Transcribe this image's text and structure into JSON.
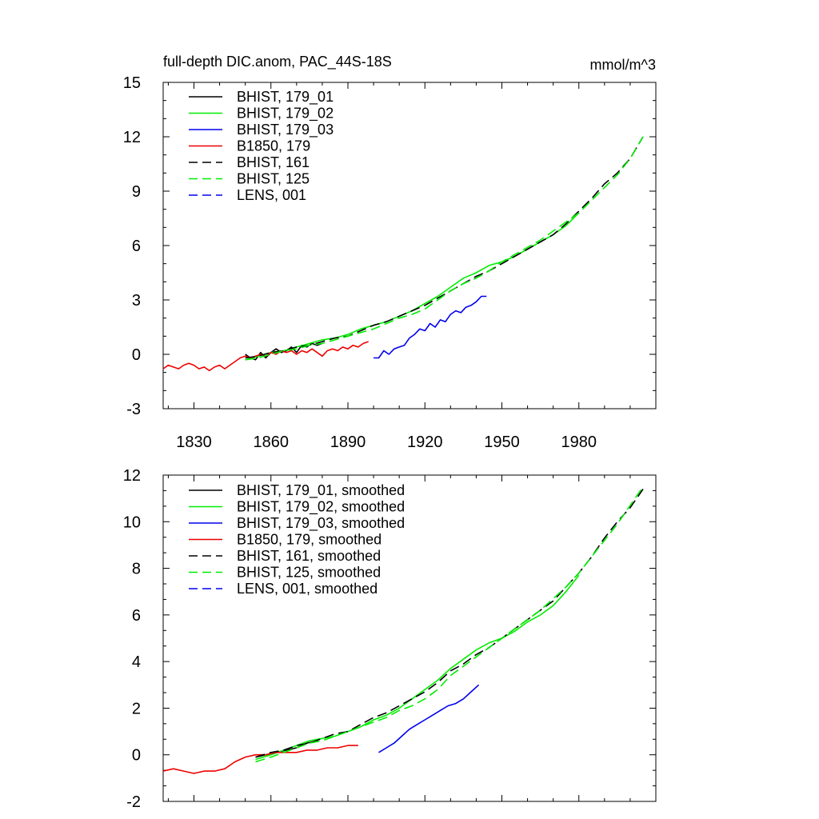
{
  "chart_data": [
    {
      "type": "line",
      "title": "full-depth DIC.anom, PAC_44S-18S",
      "units": "mmol/m^3",
      "xlim": [
        1818,
        2010
      ],
      "ylim": [
        -3,
        15
      ],
      "yticks": [
        "-3",
        "0",
        "3",
        "6",
        "9",
        "12",
        "15"
      ],
      "xticks": [
        "1830",
        "1860",
        "1890",
        "1920",
        "1950",
        "1980"
      ],
      "legend_position": "top-left",
      "series": [
        {
          "name": "BHIST, 179_01",
          "color": "#000000",
          "dash": "solid",
          "x": [
            1850,
            1852,
            1854,
            1856,
            1858,
            1860,
            1862,
            1864,
            1866,
            1868,
            1870,
            1872,
            1874,
            1876,
            1878,
            1880
          ],
          "y": [
            0.0,
            -0.2,
            -0.3,
            0.1,
            -0.2,
            0.1,
            0.3,
            0.1,
            0.2,
            0.4,
            0.1,
            0.5,
            0.4,
            0.6,
            0.5,
            0.6
          ]
        },
        {
          "name": "BHIST, 179_02",
          "color": "#00ee00",
          "dash": "solid",
          "x": [
            1850,
            1855,
            1860,
            1865,
            1870,
            1875,
            1880,
            1885,
            1890,
            1895,
            1900,
            1905,
            1910,
            1915,
            1920,
            1925,
            1930,
            1935,
            1940,
            1945,
            1950,
            1955,
            1960,
            1965,
            1970,
            1975,
            1980
          ],
          "y": [
            -0.3,
            -0.1,
            0.1,
            0.2,
            0.4,
            0.6,
            0.8,
            0.9,
            1.1,
            1.4,
            1.6,
            1.8,
            2.1,
            2.4,
            2.8,
            3.2,
            3.7,
            4.2,
            4.5,
            4.9,
            5.1,
            5.4,
            5.8,
            6.2,
            6.6,
            7.1,
            7.8
          ]
        },
        {
          "name": "BHIST, 179_03",
          "color": "#0000ee",
          "dash": "solid",
          "x": [
            1900,
            1902,
            1904,
            1906,
            1908,
            1910,
            1912,
            1914,
            1916,
            1918,
            1920,
            1922,
            1924,
            1926,
            1928,
            1930,
            1932,
            1934,
            1936,
            1938,
            1940,
            1942,
            1944
          ],
          "y": [
            -0.2,
            -0.2,
            0.2,
            0.0,
            0.3,
            0.4,
            0.5,
            0.9,
            1.1,
            1.4,
            1.3,
            1.7,
            1.5,
            1.9,
            1.8,
            2.2,
            2.4,
            2.3,
            2.6,
            2.7,
            2.9,
            3.2,
            3.2
          ]
        },
        {
          "name": "B1850, 179",
          "color": "#ee0000",
          "dash": "solid",
          "x": [
            1818,
            1820,
            1822,
            1824,
            1826,
            1828,
            1830,
            1832,
            1834,
            1836,
            1838,
            1840,
            1842,
            1844,
            1846,
            1848,
            1850,
            1852,
            1854,
            1856,
            1858,
            1860,
            1862,
            1864,
            1866,
            1868,
            1870,
            1872,
            1874,
            1876,
            1878,
            1880,
            1882,
            1884,
            1886,
            1888,
            1890,
            1892,
            1894,
            1896,
            1898
          ],
          "y": [
            -0.8,
            -0.6,
            -0.7,
            -0.8,
            -0.6,
            -0.5,
            -0.6,
            -0.8,
            -0.7,
            -0.9,
            -0.7,
            -0.6,
            -0.8,
            -0.6,
            -0.4,
            -0.2,
            -0.1,
            -0.2,
            -0.1,
            0.0,
            -0.1,
            0.1,
            0.0,
            0.2,
            0.1,
            0.2,
            0.0,
            0.2,
            0.1,
            0.3,
            0.1,
            -0.1,
            0.2,
            0.3,
            0.2,
            0.4,
            0.3,
            0.5,
            0.4,
            0.6,
            0.7
          ]
        },
        {
          "name": "BHIST, 161",
          "color": "#000000",
          "dash": "dashed",
          "x": [
            1850,
            1855,
            1860,
            1865,
            1870,
            1875,
            1880,
            1885,
            1890,
            1895,
            1900,
            1905,
            1910,
            1915,
            1920,
            1925,
            1930,
            1935,
            1940,
            1945,
            1950,
            1955,
            1960,
            1965,
            1970,
            1975,
            1980,
            1985,
            1990,
            1995,
            2000,
            2005
          ],
          "y": [
            -0.2,
            -0.1,
            0.1,
            0.2,
            0.4,
            0.5,
            0.7,
            0.9,
            1.0,
            1.3,
            1.6,
            1.8,
            2.1,
            2.4,
            2.7,
            3.1,
            3.5,
            3.9,
            4.3,
            4.6,
            5.0,
            5.4,
            5.8,
            6.2,
            6.6,
            7.2,
            7.9,
            8.6,
            9.4,
            10.0,
            10.8,
            12.0
          ]
        },
        {
          "name": "BHIST, 125",
          "color": "#00ee00",
          "dash": "dashed",
          "x": [
            1850,
            1855,
            1860,
            1865,
            1870,
            1875,
            1880,
            1885,
            1890,
            1895,
            1900,
            1905,
            1910,
            1915,
            1920,
            1925,
            1930,
            1935,
            1940,
            1945,
            1950,
            1955,
            1960,
            1965,
            1970,
            1975,
            1980,
            1985,
            1990,
            1995,
            2000,
            2005
          ],
          "y": [
            -0.3,
            -0.2,
            0.0,
            0.2,
            0.3,
            0.5,
            0.6,
            0.8,
            1.0,
            1.2,
            1.4,
            1.7,
            2.0,
            2.2,
            2.5,
            3.0,
            3.5,
            3.9,
            4.2,
            4.6,
            5.1,
            5.5,
            5.9,
            6.3,
            6.8,
            7.3,
            7.8,
            8.5,
            9.2,
            9.9,
            10.8,
            12.0
          ]
        },
        {
          "name": "LENS, 001",
          "color": "#0000ee",
          "dash": "dashed",
          "x": [],
          "y": []
        }
      ]
    },
    {
      "type": "line",
      "title": "",
      "xlim": [
        1818,
        2010
      ],
      "ylim": [
        -2,
        12
      ],
      "yticks": [
        "-2",
        "0",
        "2",
        "4",
        "6",
        "8",
        "10",
        "12"
      ],
      "xticks": [],
      "legend_position": "top-left",
      "series": [
        {
          "name": "BHIST, 179_01, smoothed",
          "color": "#000000",
          "dash": "solid",
          "x": [
            1854,
            1858,
            1862,
            1866,
            1870,
            1874,
            1878
          ],
          "y": [
            -0.1,
            0.0,
            0.1,
            0.2,
            0.3,
            0.5,
            0.6
          ]
        },
        {
          "name": "BHIST, 179_02, smoothed",
          "color": "#00ee00",
          "dash": "solid",
          "x": [
            1854,
            1860,
            1865,
            1870,
            1875,
            1880,
            1885,
            1890,
            1895,
            1900,
            1905,
            1910,
            1915,
            1920,
            1925,
            1930,
            1935,
            1940,
            1945,
            1950,
            1955,
            1960,
            1965,
            1970,
            1975,
            1980
          ],
          "y": [
            -0.2,
            0.0,
            0.2,
            0.4,
            0.6,
            0.7,
            0.8,
            1.0,
            1.2,
            1.5,
            1.7,
            2.0,
            2.4,
            2.8,
            3.2,
            3.7,
            4.1,
            4.5,
            4.8,
            5.0,
            5.3,
            5.7,
            6.0,
            6.4,
            7.0,
            7.7
          ]
        },
        {
          "name": "BHIST, 179_03, smoothed",
          "color": "#0000ee",
          "dash": "solid",
          "x": [
            1902,
            1905,
            1908,
            1911,
            1914,
            1917,
            1920,
            1923,
            1926,
            1929,
            1932,
            1935,
            1938,
            1941
          ],
          "y": [
            0.1,
            0.3,
            0.5,
            0.8,
            1.1,
            1.3,
            1.5,
            1.7,
            1.9,
            2.1,
            2.2,
            2.4,
            2.7,
            3.0
          ]
        },
        {
          "name": "B1850, 179, smoothed",
          "color": "#ee0000",
          "dash": "solid",
          "x": [
            1818,
            1822,
            1826,
            1830,
            1834,
            1838,
            1842,
            1846,
            1850,
            1854,
            1858,
            1862,
            1866,
            1870,
            1874,
            1878,
            1882,
            1886,
            1890,
            1894
          ],
          "y": [
            -0.7,
            -0.6,
            -0.7,
            -0.8,
            -0.7,
            -0.7,
            -0.6,
            -0.3,
            -0.1,
            0.0,
            0.0,
            0.1,
            0.1,
            0.1,
            0.2,
            0.2,
            0.3,
            0.3,
            0.4,
            0.4
          ]
        },
        {
          "name": "BHIST, 161, smoothed",
          "color": "#000000",
          "dash": "dashed",
          "x": [
            1854,
            1860,
            1865,
            1870,
            1875,
            1880,
            1885,
            1890,
            1895,
            1900,
            1905,
            1910,
            1915,
            1920,
            1925,
            1930,
            1935,
            1940,
            1945,
            1950,
            1955,
            1960,
            1965,
            1970,
            1975,
            1980,
            1985,
            1990,
            1995,
            2000,
            2005
          ],
          "y": [
            -0.1,
            0.1,
            0.2,
            0.4,
            0.5,
            0.7,
            0.9,
            1.0,
            1.3,
            1.6,
            1.8,
            2.1,
            2.4,
            2.7,
            3.1,
            3.6,
            3.9,
            4.3,
            4.6,
            5.0,
            5.4,
            5.8,
            6.2,
            6.6,
            7.2,
            7.8,
            8.5,
            9.3,
            10.0,
            10.6,
            11.4
          ]
        },
        {
          "name": "BHIST, 125, smoothed",
          "color": "#00ee00",
          "dash": "dashed",
          "x": [
            1854,
            1860,
            1865,
            1870,
            1875,
            1880,
            1885,
            1890,
            1895,
            1900,
            1905,
            1910,
            1915,
            1920,
            1925,
            1930,
            1935,
            1940,
            1945,
            1950,
            1955,
            1960,
            1965,
            1970,
            1975,
            1980,
            1985,
            1990,
            1995,
            2000,
            2005
          ],
          "y": [
            -0.3,
            -0.1,
            0.1,
            0.3,
            0.5,
            0.6,
            0.8,
            1.0,
            1.2,
            1.4,
            1.6,
            1.9,
            2.1,
            2.4,
            2.8,
            3.4,
            3.8,
            4.2,
            4.6,
            5.0,
            5.4,
            5.8,
            6.2,
            6.7,
            7.2,
            7.8,
            8.5,
            9.2,
            9.9,
            10.7,
            11.5
          ]
        },
        {
          "name": "LENS, 001, smoothed",
          "color": "#0000ee",
          "dash": "dashed",
          "x": [],
          "y": []
        }
      ]
    }
  ]
}
